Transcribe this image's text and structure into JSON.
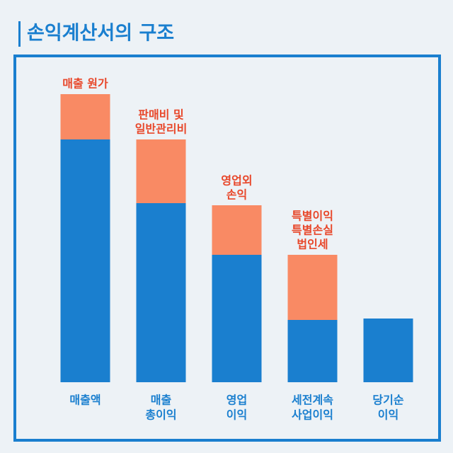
{
  "chart_data": {
    "type": "stacked-bar",
    "title": "손익계산서의 구조",
    "categories": [
      [
        "매출액"
      ],
      [
        "매출",
        "총이익"
      ],
      [
        "영업",
        "이익"
      ],
      [
        "세전계속",
        "사업이익"
      ],
      [
        "당기순",
        "이익"
      ]
    ],
    "annotations": [
      [
        "매출 원가"
      ],
      [
        "판매비 및",
        "일반관리비"
      ],
      [
        "영업외",
        "손익"
      ],
      [
        "특별이익",
        "특별손실",
        "법인세"
      ],
      null
    ],
    "series": [
      {
        "color": "#1a7fcf",
        "values": [
          343,
          253,
          180,
          88,
          90
        ]
      },
      {
        "color": "#f98a64",
        "values": [
          64,
          90,
          70,
          92,
          null
        ]
      }
    ],
    "ylim": [
      0,
      460
    ]
  }
}
